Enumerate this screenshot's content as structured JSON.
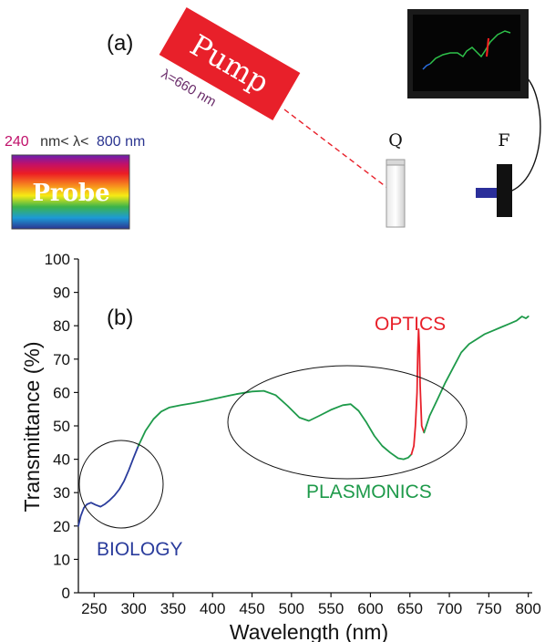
{
  "panel_a": {
    "label": "(a)",
    "pump_label": "Pump",
    "pump_wavelength": "λ=660 nm",
    "probe_range": {
      "lo": "240",
      "mid": "nm< λ<",
      "hi": "800",
      "unit": "nm"
    },
    "probe_label": "Probe",
    "cuvette_label": "Q",
    "fiber_label": "F"
  },
  "chart_data": {
    "type": "line",
    "panel_label": "(b)",
    "xlabel": "Wavelength (nm)",
    "ylabel": "Transmittance (%)",
    "xlim": [
      230,
      805
    ],
    "ylim": [
      0,
      100
    ],
    "xticks": [
      250,
      300,
      350,
      400,
      450,
      500,
      550,
      600,
      650,
      700,
      750,
      800
    ],
    "yticks": [
      0,
      10,
      20,
      30,
      40,
      50,
      60,
      70,
      80,
      90,
      100
    ],
    "grid": false,
    "colors": {
      "biology": "#2a3c9c",
      "plasmonics": "#1e9a4a",
      "optics": "#e8202a"
    },
    "series": [
      {
        "region": "biology",
        "x": [
          230,
          233,
          237,
          241,
          246,
          252,
          258,
          264,
          270,
          276,
          282,
          288,
          294,
          300,
          306
        ],
        "y": [
          20,
          23,
          25.5,
          26.5,
          27,
          26.3,
          25.8,
          26.6,
          27.8,
          29.2,
          31,
          33.5,
          36.8,
          40.5,
          44
        ]
      },
      {
        "region": "plasmonics",
        "x": [
          306,
          315,
          325,
          335,
          345,
          360,
          375,
          390,
          410,
          430,
          450,
          465,
          480,
          495,
          510,
          522,
          535,
          550,
          565,
          575,
          585,
          595,
          605,
          615,
          625,
          635,
          642,
          648,
          652
        ],
        "y": [
          44,
          48.5,
          52,
          54.3,
          55.5,
          56.2,
          56.8,
          57.5,
          58.5,
          59.5,
          60.3,
          60.5,
          59.2,
          56,
          52.5,
          51.5,
          53,
          54.8,
          56.2,
          56.5,
          54.5,
          51,
          47,
          44,
          42,
          40.3,
          40,
          40.5,
          41.5
        ]
      },
      {
        "region": "optics",
        "x": [
          652,
          655,
          657,
          659,
          660,
          661,
          662,
          663,
          665,
          668
        ],
        "y": [
          41.5,
          44,
          50,
          60,
          72,
          79,
          74,
          62,
          50,
          48
        ]
      },
      {
        "region": "plasmonics",
        "x": [
          668,
          675,
          685,
          695,
          705,
          715,
          725,
          735,
          745,
          755,
          765,
          775,
          785,
          792,
          797,
          800
        ],
        "y": [
          48,
          53,
          58,
          63,
          67.5,
          72,
          74.5,
          76,
          77.5,
          78.5,
          79.5,
          80.5,
          81.5,
          82.8,
          82.2,
          82.8
        ]
      }
    ],
    "annotations": [
      {
        "text": "BIOLOGY",
        "color": "#2a3c9c"
      },
      {
        "text": "PLASMONICS",
        "color": "#1e9a4a"
      },
      {
        "text": "OPTICS",
        "color": "#e8202a"
      }
    ]
  }
}
